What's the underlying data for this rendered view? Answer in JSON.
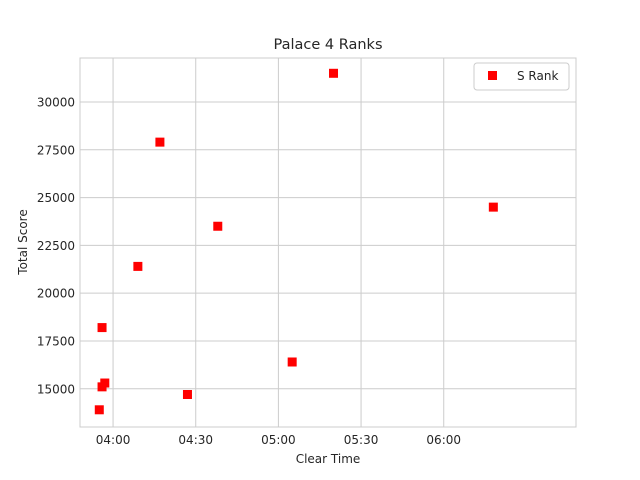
{
  "chart_data": {
    "type": "scatter",
    "title": "Palace 4 Ranks",
    "xlabel": "Clear Time",
    "ylabel": "Total Score",
    "x_unit": "mm:ss",
    "xlim": [
      "03:48",
      "06:48"
    ],
    "ylim": [
      13000,
      32300
    ],
    "x_ticks": [
      "04:00",
      "04:30",
      "05:00",
      "05:30",
      "06:00"
    ],
    "y_ticks": [
      15000,
      17500,
      20000,
      22500,
      25000,
      27500,
      30000
    ],
    "grid": true,
    "legend_position": "top-right",
    "series": [
      {
        "name": "S Rank",
        "marker": "square",
        "color": "#ff0000",
        "points": [
          {
            "x": "03:55",
            "y": 13900
          },
          {
            "x": "03:56",
            "y": 18200
          },
          {
            "x": "03:56",
            "y": 15100
          },
          {
            "x": "03:57",
            "y": 15300
          },
          {
            "x": "04:09",
            "y": 21400
          },
          {
            "x": "04:17",
            "y": 27900
          },
          {
            "x": "04:27",
            "y": 14700
          },
          {
            "x": "04:38",
            "y": 23500
          },
          {
            "x": "05:05",
            "y": 16400
          },
          {
            "x": "05:20",
            "y": 31500
          },
          {
            "x": "06:18",
            "y": 24500
          }
        ]
      }
    ]
  }
}
